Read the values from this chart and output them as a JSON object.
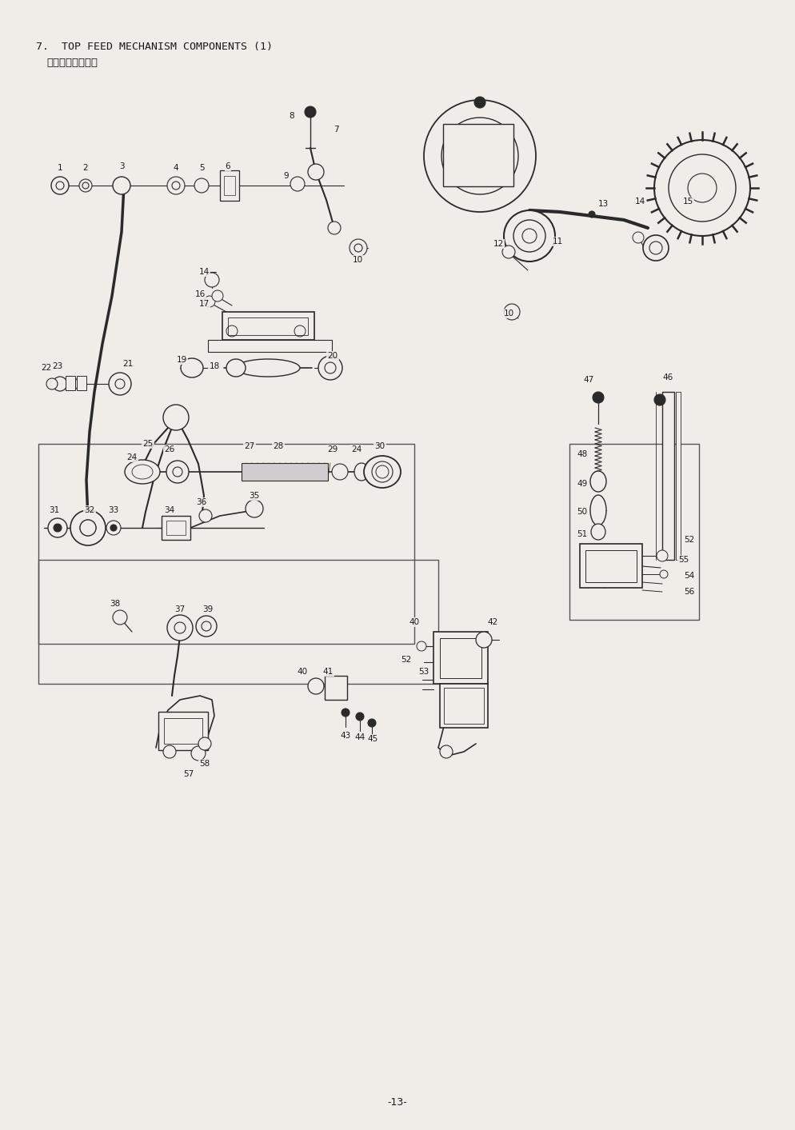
{
  "title_line1": "7.  TOP FEED MECHANISM COMPONENTS (1)",
  "title_line2": "上送り関係（１）",
  "page_number": "-13-",
  "bg_color": "#f0ede8",
  "text_color": "#1a1a1a",
  "line_color": "#2a2a2a",
  "page_width": 9.94,
  "page_height": 14.13,
  "dpi": 100
}
